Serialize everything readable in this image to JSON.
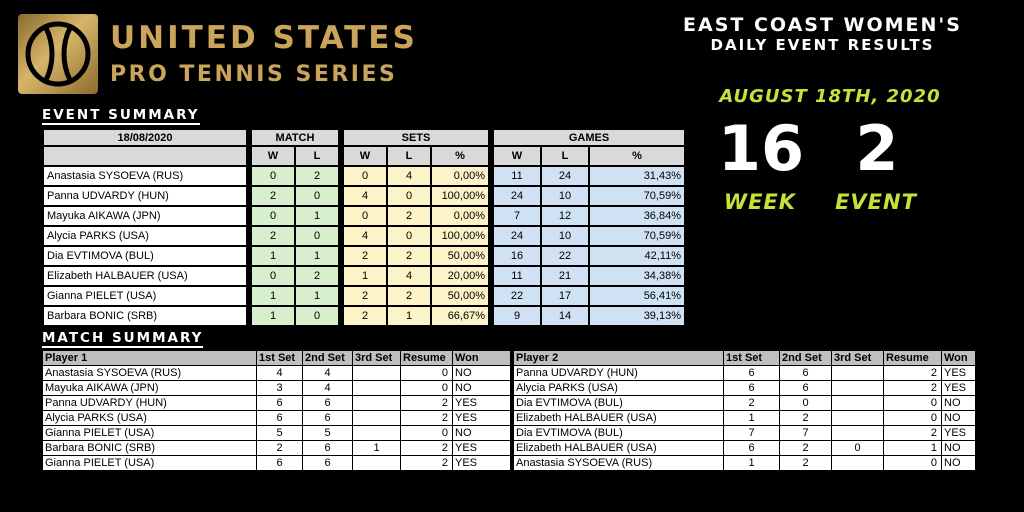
{
  "brand": {
    "line1": "UNITED STATES",
    "line2": "PRO TENNIS SERIES"
  },
  "header": {
    "line1": "EAST COAST WOMEN'S",
    "line2": "DAILY EVENT RESULTS",
    "date": "AUGUST 18TH, 2020",
    "week_num": "16",
    "event_num": "2",
    "week_label": "WEEK",
    "event_label": "EVENT"
  },
  "event_summary": {
    "title": "EVENT SUMMARY",
    "date_label": "18/08/2020",
    "groups": {
      "match": "MATCH",
      "sets": "SETS",
      "games": "GAMES"
    },
    "sub": {
      "w": "W",
      "l": "L",
      "pct": "%"
    },
    "rows": [
      {
        "player": "Anastasia SYSOEVA (RUS)",
        "mw": "0",
        "ml": "2",
        "sw": "0",
        "sl": "4",
        "sp": "0,00%",
        "gw": "11",
        "gl": "24",
        "gp": "31,43%"
      },
      {
        "player": "Panna UDVARDY (HUN)",
        "mw": "2",
        "ml": "0",
        "sw": "4",
        "sl": "0",
        "sp": "100,00%",
        "gw": "24",
        "gl": "10",
        "gp": "70,59%"
      },
      {
        "player": "Mayuka AIKAWA (JPN)",
        "mw": "0",
        "ml": "1",
        "sw": "0",
        "sl": "2",
        "sp": "0,00%",
        "gw": "7",
        "gl": "12",
        "gp": "36,84%"
      },
      {
        "player": "Alycia PARKS (USA)",
        "mw": "2",
        "ml": "0",
        "sw": "4",
        "sl": "0",
        "sp": "100,00%",
        "gw": "24",
        "gl": "10",
        "gp": "70,59%"
      },
      {
        "player": "Dia EVTIMOVA (BUL)",
        "mw": "1",
        "ml": "1",
        "sw": "2",
        "sl": "2",
        "sp": "50,00%",
        "gw": "16",
        "gl": "22",
        "gp": "42,11%"
      },
      {
        "player": "Elizabeth HALBAUER (USA)",
        "mw": "0",
        "ml": "2",
        "sw": "1",
        "sl": "4",
        "sp": "20,00%",
        "gw": "11",
        "gl": "21",
        "gp": "34,38%"
      },
      {
        "player": "Gianna PIELET (USA)",
        "mw": "1",
        "ml": "1",
        "sw": "2",
        "sl": "2",
        "sp": "50,00%",
        "gw": "22",
        "gl": "17",
        "gp": "56,41%"
      },
      {
        "player": "Barbara BONIC (SRB)",
        "mw": "1",
        "ml": "0",
        "sw": "2",
        "sl": "1",
        "sp": "66,67%",
        "gw": "9",
        "gl": "14",
        "gp": "39,13%"
      }
    ]
  },
  "match_summary": {
    "title": "MATCH SUMMARY",
    "headers": {
      "player1": "Player 1",
      "set1": "1st Set",
      "set2": "2nd Set",
      "set3": "3rd Set",
      "resume": "Resume",
      "won": "Won",
      "player2": "Player 2"
    },
    "rows": [
      {
        "p1": "Anastasia SYSOEVA (RUS)",
        "a1": "4",
        "a2": "4",
        "a3": "",
        "ar": "0",
        "aw": "NO",
        "p2": "Panna UDVARDY (HUN)",
        "b1": "6",
        "b2": "6",
        "b3": "",
        "br": "2",
        "bw": "YES"
      },
      {
        "p1": "Mayuka AIKAWA (JPN)",
        "a1": "3",
        "a2": "4",
        "a3": "",
        "ar": "0",
        "aw": "NO",
        "p2": "Alycia PARKS (USA)",
        "b1": "6",
        "b2": "6",
        "b3": "",
        "br": "2",
        "bw": "YES"
      },
      {
        "p1": "Panna UDVARDY (HUN)",
        "a1": "6",
        "a2": "6",
        "a3": "",
        "ar": "2",
        "aw": "YES",
        "p2": "Dia EVTIMOVA (BUL)",
        "b1": "2",
        "b2": "0",
        "b3": "",
        "br": "0",
        "bw": "NO"
      },
      {
        "p1": "Alycia PARKS (USA)",
        "a1": "6",
        "a2": "6",
        "a3": "",
        "ar": "2",
        "aw": "YES",
        "p2": "Elizabeth HALBAUER (USA)",
        "b1": "1",
        "b2": "2",
        "b3": "",
        "br": "0",
        "bw": "NO"
      },
      {
        "p1": "Gianna PIELET (USA)",
        "a1": "5",
        "a2": "5",
        "a3": "",
        "ar": "0",
        "aw": "NO",
        "p2": "Dia EVTIMOVA (BUL)",
        "b1": "7",
        "b2": "7",
        "b3": "",
        "br": "2",
        "bw": "YES"
      },
      {
        "p1": "Barbara BONIC (SRB)",
        "a1": "2",
        "a2": "6",
        "a3": "1",
        "ar": "2",
        "aw": "YES",
        "p2": "Elizabeth HALBAUER (USA)",
        "b1": "6",
        "b2": "2",
        "b3": "0",
        "br": "1",
        "bw": "NO"
      },
      {
        "p1": "Gianna PIELET (USA)",
        "a1": "6",
        "a2": "6",
        "a3": "",
        "ar": "2",
        "aw": "YES",
        "p2": "Anastasia SYSOEVA (RUS)",
        "b1": "1",
        "b2": "2",
        "b3": "",
        "br": "0",
        "bw": "NO"
      }
    ]
  },
  "colors": {
    "gold": "#c9a45a",
    "accent_green": "#c8e03a",
    "match_cell": "#d8efcd",
    "sets_cell": "#fdf3c8",
    "games_cell": "#cfe1f3"
  },
  "icons": {
    "logo": "tennis-ball-icon"
  }
}
